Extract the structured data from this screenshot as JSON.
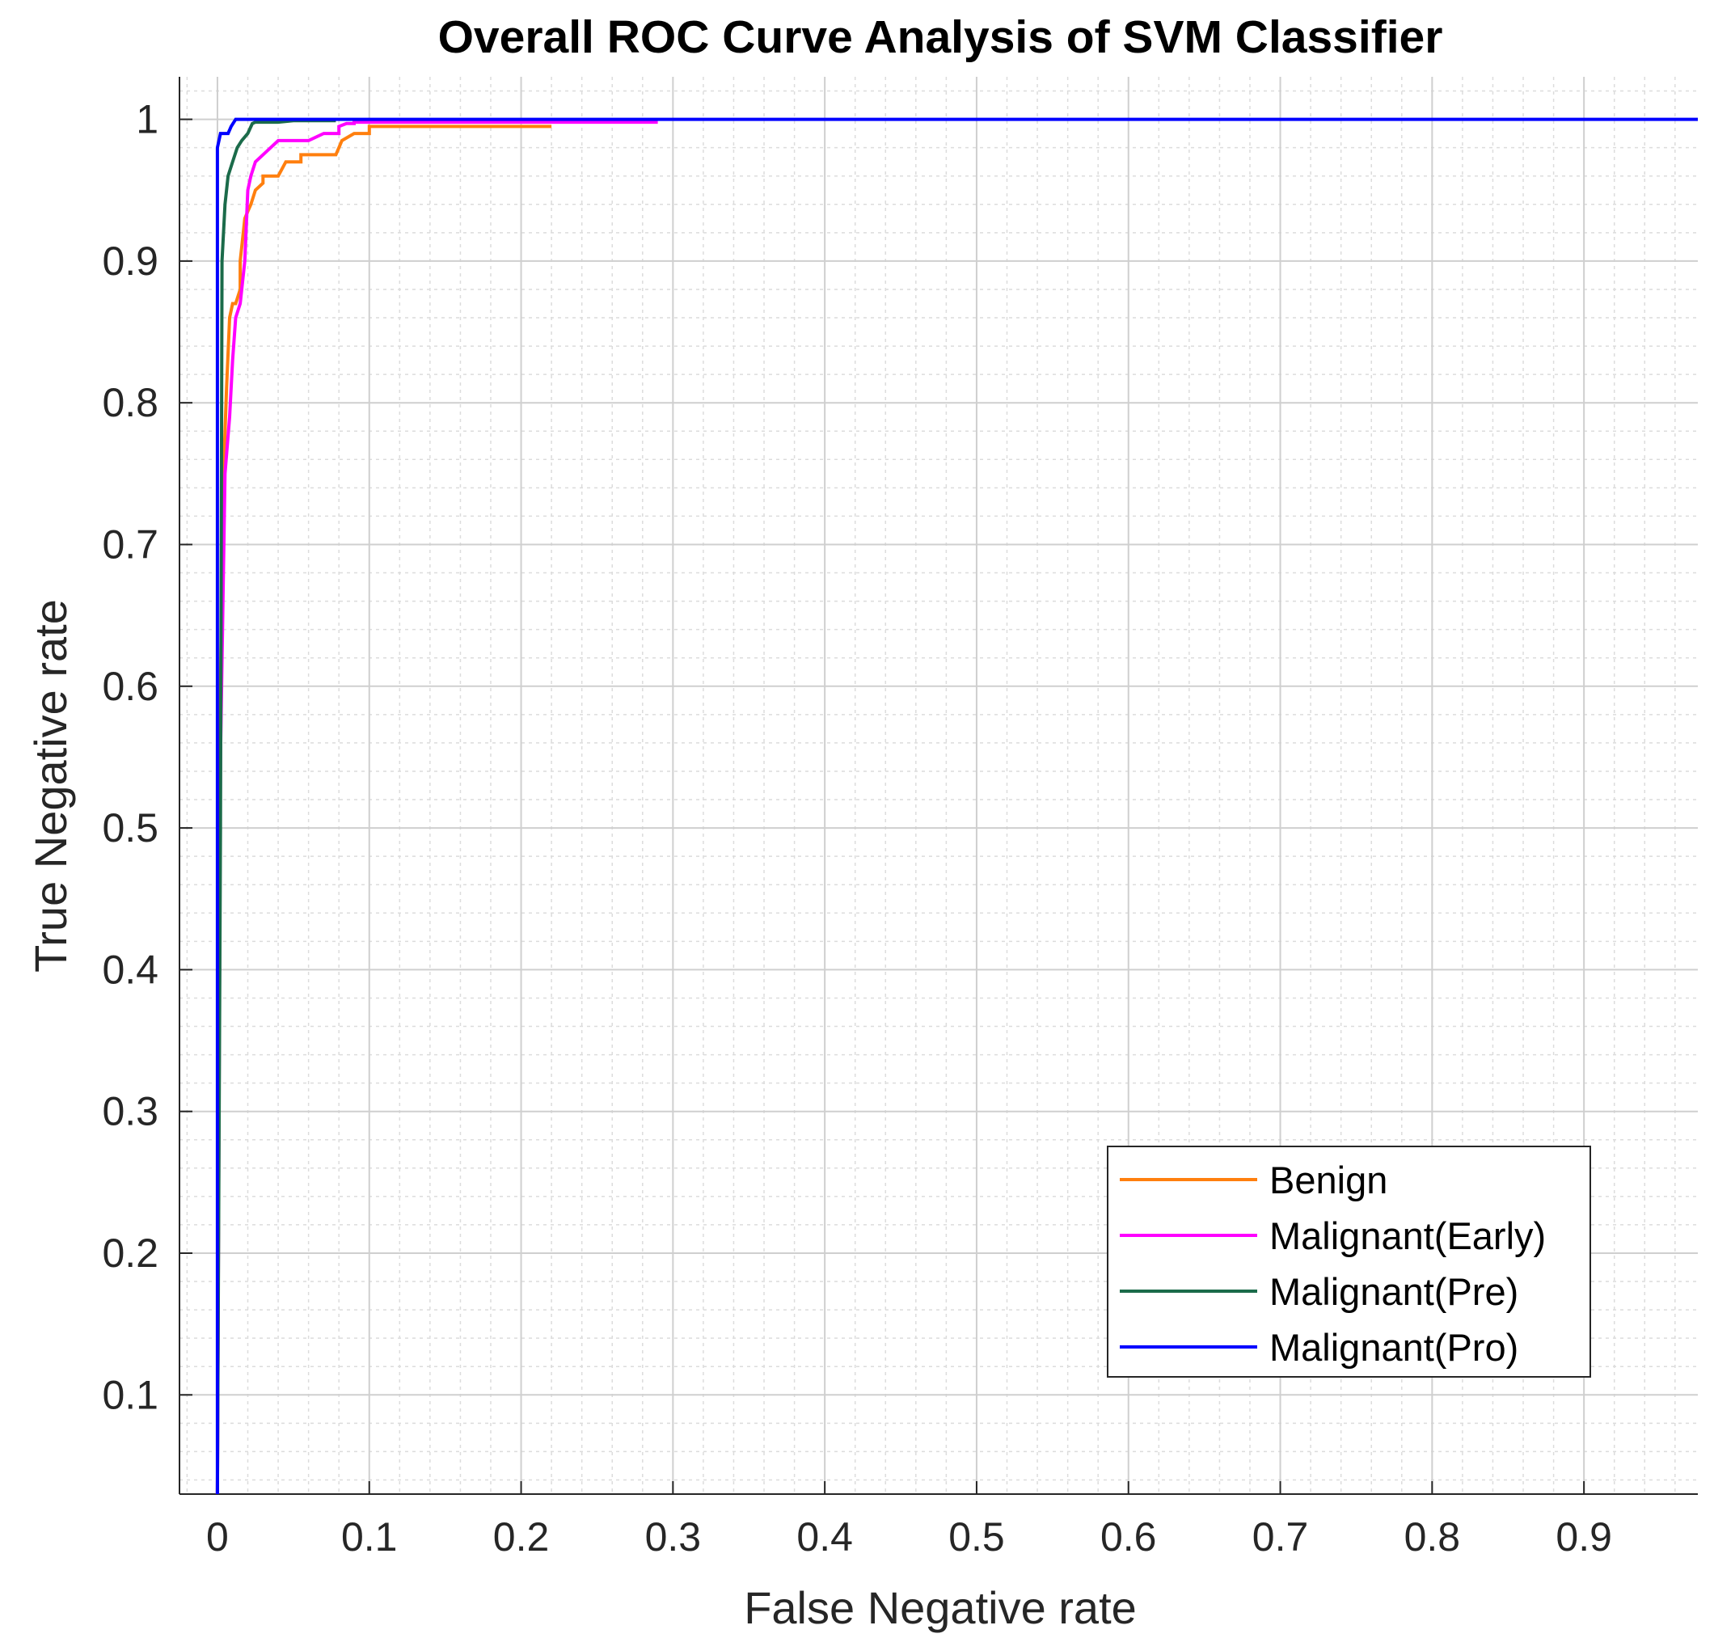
{
  "chart_data": {
    "type": "line",
    "title": "Overall ROC Curve Analysis of SVM Classifier",
    "xlabel": "False Negative rate",
    "ylabel": "True Negative rate",
    "xlim": [
      -0.025,
      0.975
    ],
    "ylim": [
      0.03,
      1.03
    ],
    "xticks": [
      0,
      0.1,
      0.2,
      0.3,
      0.4,
      0.5,
      0.6,
      0.7,
      0.8,
      0.9
    ],
    "xtick_labels": [
      "0",
      "0.1",
      "0.2",
      "0.3",
      "0.4",
      "0.5",
      "0.6",
      "0.7",
      "0.8",
      "0.9"
    ],
    "yticks": [
      0.1,
      0.2,
      0.3,
      0.4,
      0.5,
      0.6,
      0.7,
      0.8,
      0.9,
      1
    ],
    "ytick_labels": [
      "0.1",
      "0.2",
      "0.3",
      "0.4",
      "0.5",
      "0.6",
      "0.7",
      "0.8",
      "0.9",
      "1"
    ],
    "grid": true,
    "minor_grid": true,
    "legend_position": "bottom-right",
    "series": [
      {
        "name": "Benign",
        "color": "#ff7f0e",
        "x": [
          0,
          0.002,
          0.004,
          0.006,
          0.008,
          0.01,
          0.012,
          0.015,
          0.015,
          0.018,
          0.02,
          0.022,
          0.025,
          0.03,
          0.03,
          0.035,
          0.04,
          0.045,
          0.055,
          0.055,
          0.065,
          0.078,
          0.08,
          0.082,
          0.09,
          0.1,
          0.1,
          0.22
        ],
        "y": [
          0.03,
          0.6,
          0.75,
          0.81,
          0.86,
          0.87,
          0.87,
          0.88,
          0.9,
          0.93,
          0.935,
          0.94,
          0.95,
          0.955,
          0.96,
          0.96,
          0.96,
          0.97,
          0.97,
          0.975,
          0.975,
          0.975,
          0.98,
          0.985,
          0.99,
          0.99,
          0.995,
          0.995
        ]
      },
      {
        "name": "Malignant(Early)",
        "color": "#ff00ff",
        "x": [
          0,
          0.002,
          0.005,
          0.008,
          0.01,
          0.012,
          0.015,
          0.018,
          0.02,
          0.022,
          0.025,
          0.03,
          0.035,
          0.04,
          0.05,
          0.06,
          0.07,
          0.08,
          0.08,
          0.085,
          0.09,
          0.09,
          0.29
        ],
        "y": [
          0.03,
          0.55,
          0.75,
          0.79,
          0.83,
          0.86,
          0.87,
          0.9,
          0.95,
          0.96,
          0.97,
          0.975,
          0.98,
          0.985,
          0.985,
          0.985,
          0.99,
          0.99,
          0.995,
          0.997,
          0.997,
          0.998,
          0.998
        ]
      },
      {
        "name": "Malignant(Pre)",
        "color": "#1b6b4a",
        "x": [
          0,
          0.002,
          0.003,
          0.005,
          0.007,
          0.01,
          0.013,
          0.016,
          0.02,
          0.023,
          0.025,
          0.03,
          0.04,
          0.05,
          0.06,
          0.078
        ],
        "y": [
          0.03,
          0.5,
          0.9,
          0.94,
          0.96,
          0.97,
          0.98,
          0.985,
          0.99,
          0.997,
          0.998,
          0.998,
          0.998,
          0.999,
          0.999,
          0.999
        ]
      },
      {
        "name": "Malignant(Pro)",
        "color": "#0000ff",
        "x": [
          0,
          0,
          0.001,
          0.002,
          0.003,
          0.007,
          0.009,
          0.012,
          0.015,
          0.975
        ],
        "y": [
          0.03,
          0.98,
          0.985,
          0.99,
          0.99,
          0.99,
          0.995,
          1.0,
          1.0,
          1.0
        ]
      }
    ]
  }
}
